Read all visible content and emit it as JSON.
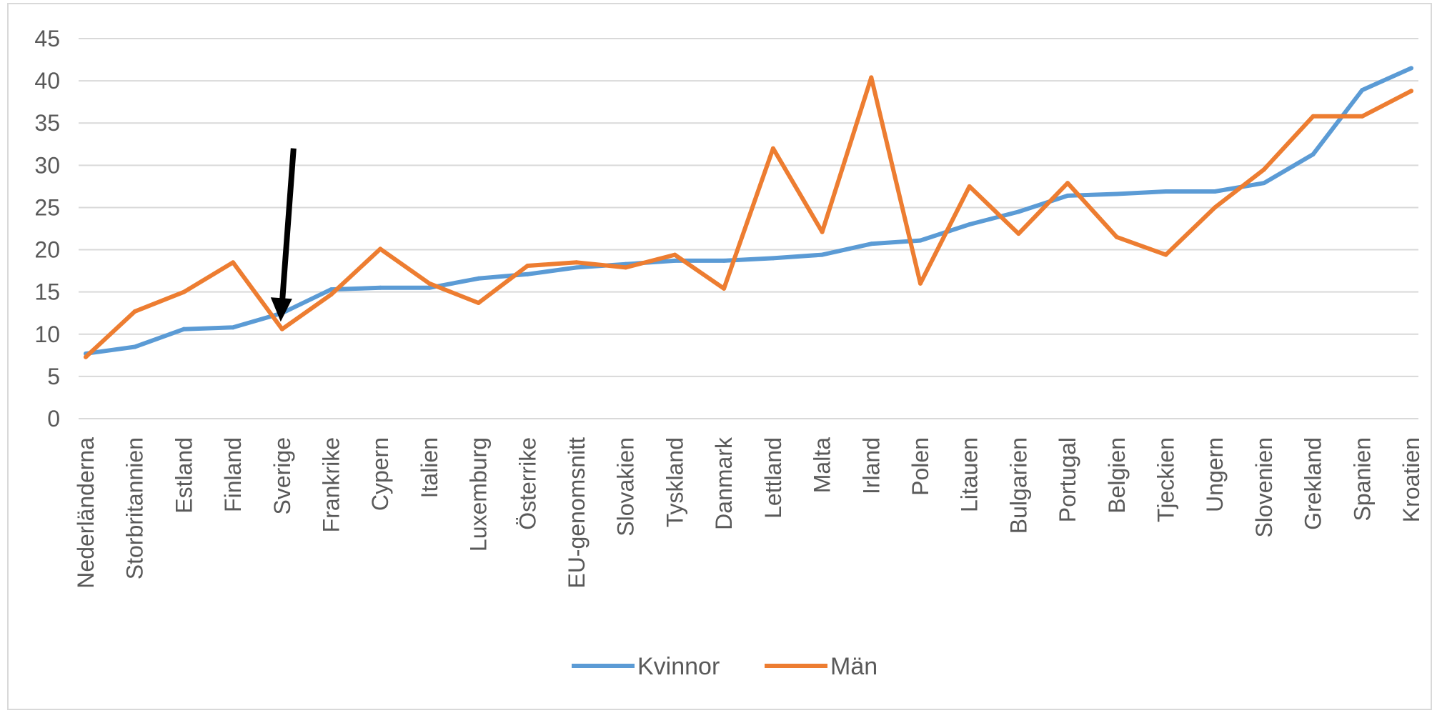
{
  "chart_data": {
    "type": "line",
    "title": "",
    "xlabel": "",
    "ylabel": "",
    "ylim": [
      0,
      45
    ],
    "yticks": [
      0,
      5,
      10,
      15,
      20,
      25,
      30,
      35,
      40,
      45
    ],
    "grid": true,
    "legend_position": "bottom",
    "categories": [
      "Nederländerna",
      "Storbritannien",
      "Estland",
      "Finland",
      "Sverige",
      "Frankrike",
      "Cypern",
      "Italien",
      "Luxemburg",
      "Österrike",
      "EU-genomsnitt",
      "Slovakien",
      "Tyskland",
      "Danmark",
      "Lettland",
      "Malta",
      "Irland",
      "Polen",
      "Litauen",
      "Bulgarien",
      "Portugal",
      "Belgien",
      "Tjeckien",
      "Ungern",
      "Slovenien",
      "Grekland",
      "Spanien",
      "Kroatien"
    ],
    "series": [
      {
        "name": "Kvinnor",
        "color": "#5b9bd5",
        "values": [
          7.7,
          8.5,
          10.6,
          10.8,
          12.5,
          15.3,
          15.5,
          15.5,
          16.6,
          17.1,
          17.9,
          18.3,
          18.7,
          18.7,
          19.0,
          19.4,
          20.7,
          21.1,
          23.0,
          24.5,
          26.4,
          26.6,
          26.9,
          26.9,
          27.9,
          31.3,
          38.9,
          41.5
        ]
      },
      {
        "name": "Män",
        "color": "#ed7d31",
        "values": [
          7.3,
          12.7,
          15.0,
          18.5,
          10.6,
          14.7,
          20.1,
          16.0,
          13.7,
          18.1,
          18.5,
          17.9,
          19.4,
          15.4,
          32.0,
          22.1,
          40.4,
          16.0,
          27.5,
          21.9,
          27.9,
          21.5,
          19.4,
          25.0,
          29.5,
          35.8,
          35.8,
          38.8
        ]
      }
    ],
    "annotations": [
      {
        "type": "arrow",
        "points_to": "Sverige",
        "color": "#000000"
      }
    ]
  }
}
